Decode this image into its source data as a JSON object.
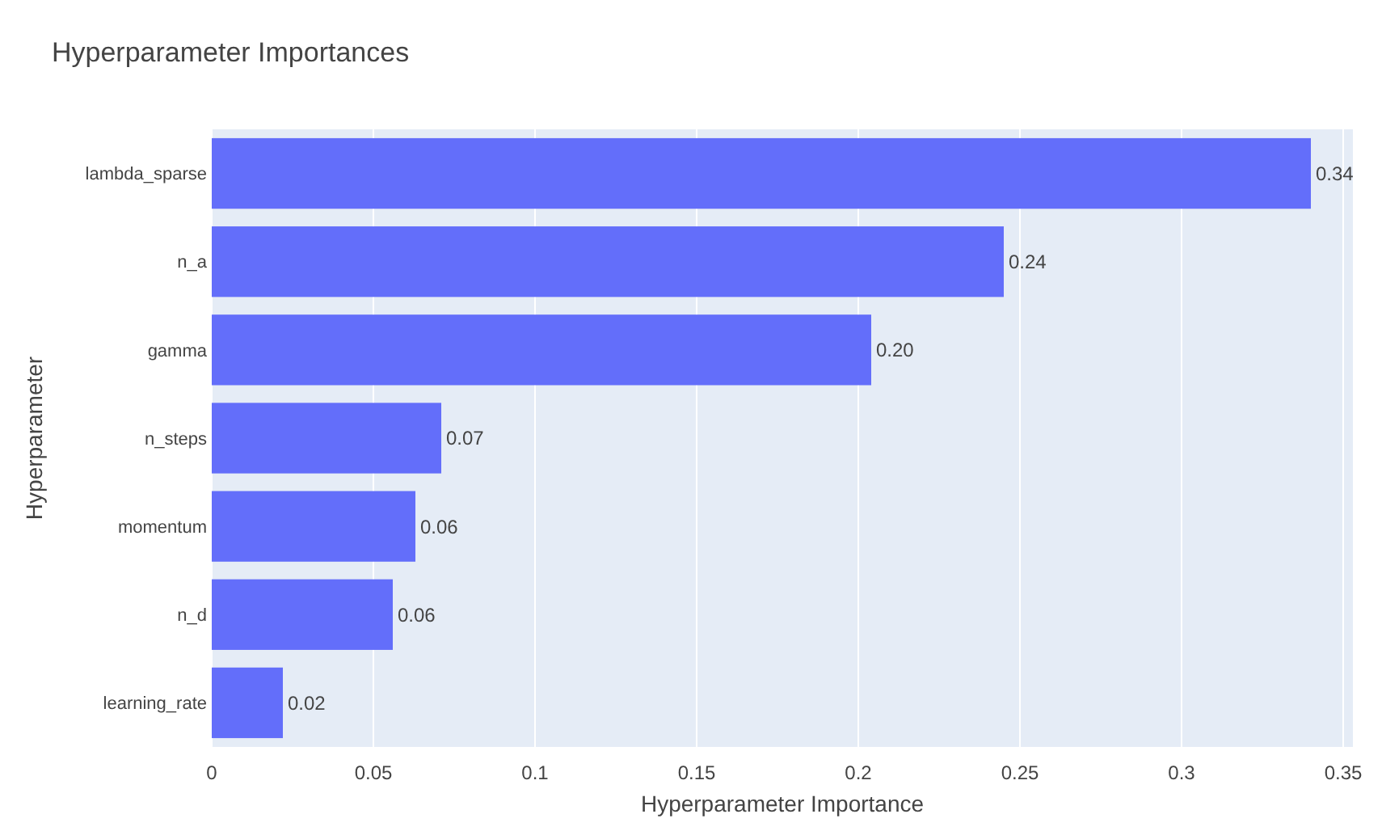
{
  "chart_data": {
    "type": "bar",
    "orientation": "horizontal",
    "title": "Hyperparameter Importances",
    "xlabel": "Hyperparameter Importance",
    "ylabel": "Hyperparameter",
    "categories": [
      "lambda_sparse",
      "n_a",
      "gamma",
      "n_steps",
      "momentum",
      "n_d",
      "learning_rate"
    ],
    "values": [
      0.34,
      0.245,
      0.204,
      0.071,
      0.063,
      0.056,
      0.022
    ],
    "value_labels": [
      "0.34",
      "0.24",
      "0.20",
      "0.07",
      "0.06",
      "0.06",
      "0.02"
    ],
    "color": "#636efa",
    "xlim": [
      0,
      0.353
    ],
    "xticks": [
      0,
      0.05,
      0.1,
      0.15,
      0.2,
      0.25,
      0.3,
      0.35
    ],
    "grid": "x"
  }
}
